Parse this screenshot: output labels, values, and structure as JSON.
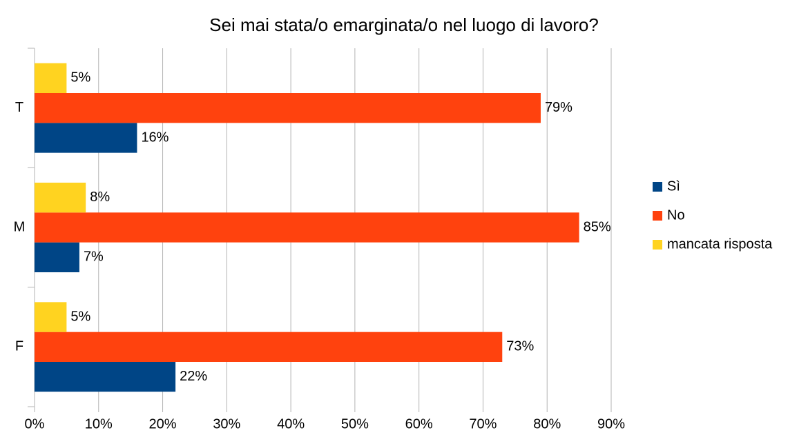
{
  "chart_data": {
    "type": "hbar",
    "title": "Sei mai stata/o emarginata/o nel luogo di lavoro?",
    "categories": [
      "F",
      "M",
      "T"
    ],
    "series": [
      {
        "name": "Sì",
        "color": "#004586",
        "values": [
          22,
          7,
          16
        ],
        "value_labels": [
          "22%",
          "7%",
          "16%"
        ]
      },
      {
        "name": "No",
        "color": "#ff420e",
        "values": [
          73,
          85,
          79
        ],
        "value_labels": [
          "73%",
          "85%",
          "79%"
        ]
      },
      {
        "name": "mancata risposta",
        "color": "#ffd320",
        "values": [
          5,
          8,
          5
        ],
        "value_labels": [
          "5%",
          "8%",
          "5%"
        ]
      }
    ],
    "xlim": [
      0,
      90
    ],
    "xticks": [
      {
        "value": 0,
        "label": "0%"
      },
      {
        "value": 10,
        "label": "10%"
      },
      {
        "value": 20,
        "label": "20%"
      },
      {
        "value": 30,
        "label": "30%"
      },
      {
        "value": 40,
        "label": "40%"
      },
      {
        "value": 50,
        "label": "50%"
      },
      {
        "value": 60,
        "label": "60%"
      },
      {
        "value": 70,
        "label": "70%"
      },
      {
        "value": 80,
        "label": "80%"
      },
      {
        "value": 90,
        "label": "90%"
      }
    ],
    "grid": true,
    "legend": "right"
  }
}
